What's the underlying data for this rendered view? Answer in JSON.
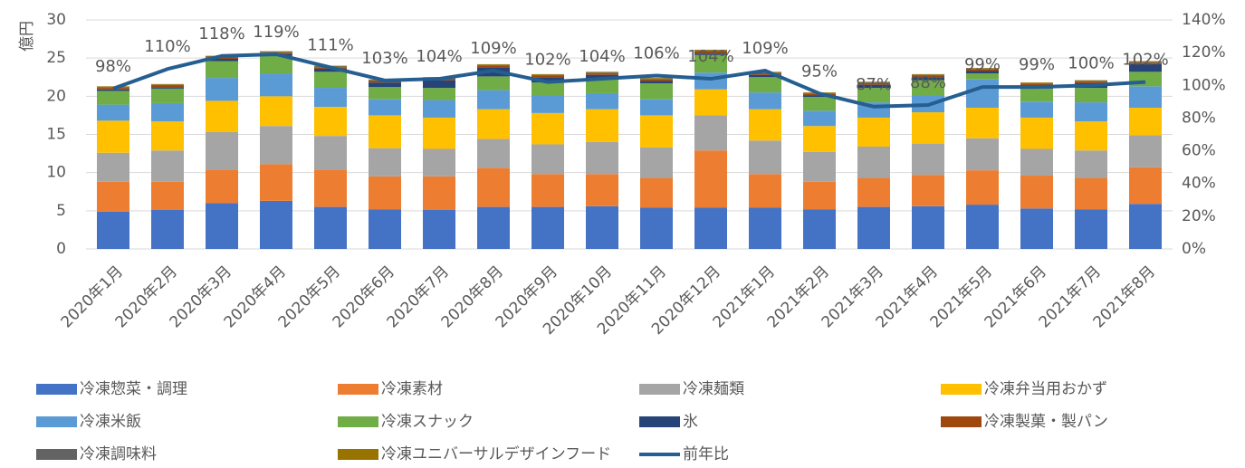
{
  "chart_data": {
    "type": "bar",
    "stacked": true,
    "ylabel": "億円",
    "categories": [
      "2020年1月",
      "2020年2月",
      "2020年3月",
      "2020年4月",
      "2020年5月",
      "2020年6月",
      "2020年7月",
      "2020年8月",
      "2020年9月",
      "2020年10月",
      "2020年11月",
      "2020年12月",
      "2021年1月",
      "2021年2月",
      "2021年3月",
      "2021年4月",
      "2021年5月",
      "2021年6月",
      "2021年7月",
      "2021年8月"
    ],
    "ylim": [
      0,
      30
    ],
    "yticks": [
      0,
      5,
      10,
      15,
      20,
      25,
      30
    ],
    "y2lim": [
      0,
      140
    ],
    "y2ticks": [
      {
        "value": 0,
        "label": "0%"
      },
      {
        "value": 20,
        "label": "20%"
      },
      {
        "value": 40,
        "label": "40%"
      },
      {
        "value": 60,
        "label": "60%"
      },
      {
        "value": 80,
        "label": "80%"
      },
      {
        "value": 100,
        "label": "100%"
      },
      {
        "value": 120,
        "label": "120%"
      },
      {
        "value": 140,
        "label": "140%"
      }
    ],
    "grid": true,
    "series": [
      {
        "name": "冷凍惣菜・調理",
        "color": "#4472c4",
        "values": [
          4.9,
          5.1,
          6.0,
          6.3,
          5.5,
          5.2,
          5.1,
          5.5,
          5.5,
          5.6,
          5.4,
          5.4,
          5.4,
          5.2,
          5.5,
          5.6,
          5.8,
          5.3,
          5.2,
          5.9
        ]
      },
      {
        "name": "冷凍素材",
        "color": "#ed7d31",
        "values": [
          3.9,
          3.7,
          4.4,
          4.8,
          4.9,
          4.3,
          4.4,
          5.1,
          4.3,
          4.2,
          3.9,
          7.5,
          4.4,
          3.6,
          3.8,
          4.1,
          4.5,
          4.3,
          4.1,
          4.8
        ]
      },
      {
        "name": "冷凍麺類",
        "color": "#a5a5a5",
        "values": [
          3.8,
          4.1,
          4.9,
          5.0,
          4.4,
          3.7,
          3.6,
          3.8,
          3.9,
          4.2,
          4.0,
          4.6,
          4.4,
          3.9,
          4.1,
          4.1,
          4.2,
          3.5,
          3.6,
          4.2
        ]
      },
      {
        "name": "冷凍弁当用おかず",
        "color": "#ffc000",
        "values": [
          4.2,
          3.8,
          4.1,
          3.9,
          3.8,
          4.3,
          4.1,
          3.9,
          4.1,
          4.3,
          4.2,
          3.4,
          4.1,
          3.4,
          3.8,
          4.1,
          4.0,
          4.1,
          3.8,
          3.6
        ]
      },
      {
        "name": "冷凍米飯",
        "color": "#5b9bd5",
        "values": [
          2.1,
          2.4,
          3.0,
          3.0,
          2.5,
          2.1,
          2.3,
          2.5,
          2.3,
          2.1,
          2.1,
          2.2,
          2.2,
          2.0,
          2.0,
          2.2,
          3.7,
          2.1,
          2.5,
          2.8
        ]
      },
      {
        "name": "冷凍スナック",
        "color": "#70ad47",
        "values": [
          1.8,
          1.9,
          2.2,
          2.3,
          2.1,
          1.6,
          1.6,
          1.8,
          1.7,
          1.8,
          2.1,
          2.3,
          2.0,
          1.8,
          1.9,
          2.0,
          0.8,
          1.7,
          1.9,
          1.9
        ]
      },
      {
        "name": "氷",
        "color": "#264478",
        "values": [
          0.2,
          0.2,
          0.3,
          0.2,
          0.4,
          0.6,
          1.0,
          1.2,
          0.7,
          0.6,
          0.3,
          0.2,
          0.3,
          0.2,
          0.4,
          0.4,
          0.3,
          0.4,
          0.6,
          1.0
        ]
      },
      {
        "name": "冷凍製菓・製パン",
        "color": "#9e480e",
        "values": [
          0.2,
          0.2,
          0.2,
          0.2,
          0.2,
          0.2,
          0.2,
          0.2,
          0.2,
          0.2,
          0.2,
          0.3,
          0.2,
          0.2,
          0.2,
          0.2,
          0.2,
          0.2,
          0.2,
          0.2
        ]
      },
      {
        "name": "冷凍調味料",
        "color": "#636363",
        "values": [
          0.1,
          0.1,
          0.1,
          0.1,
          0.1,
          0.1,
          0.1,
          0.1,
          0.1,
          0.1,
          0.1,
          0.1,
          0.1,
          0.1,
          0.1,
          0.1,
          0.1,
          0.1,
          0.1,
          0.1
        ]
      },
      {
        "name": "冷凍ユニバーサルデザインフード",
        "color": "#997300",
        "values": [
          0.1,
          0.1,
          0.1,
          0.1,
          0.1,
          0.1,
          0.1,
          0.1,
          0.1,
          0.1,
          0.1,
          0.1,
          0.1,
          0.1,
          0.1,
          0.1,
          0.1,
          0.1,
          0.1,
          0.1
        ]
      },
      {
        "name": "前年比",
        "type": "line",
        "axis": "y2",
        "color": "#255e91",
        "values": [
          98,
          110,
          118,
          119,
          111,
          103,
          104,
          109,
          102,
          104,
          106,
          104,
          109,
          95,
          87,
          88,
          99,
          99,
          100,
          102
        ],
        "value_labels": [
          "98%",
          "110%",
          "118%",
          "119%",
          "111%",
          "103%",
          "104%",
          "109%",
          "102%",
          "104%",
          "106%",
          "104%",
          "109%",
          "95%",
          "87%",
          "88%",
          "99%",
          "99%",
          "100%",
          "102%"
        ]
      }
    ]
  }
}
